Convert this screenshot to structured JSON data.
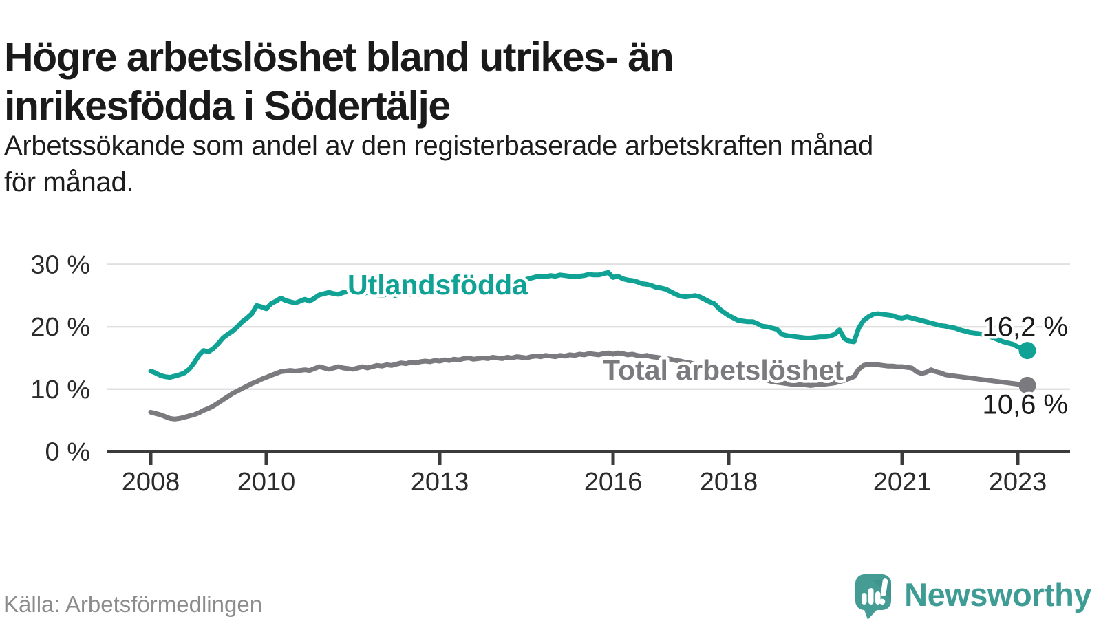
{
  "header": {
    "title_lines": [
      "Högre arbetslöshet bland utrikes- än",
      "inrikesfödda i Södertälje"
    ],
    "subtitle_lines": [
      "Arbetssökande som andel av den registerbaserade arbetskraften månad",
      "för månad."
    ]
  },
  "footer": {
    "source": "Källa: Arbetsförmedlingen",
    "brand": "Newsworthy"
  },
  "colors": {
    "foreign_born_line": "#0fa295",
    "total_line": "#7a7a7f",
    "grid": "#e0e0e0",
    "axis": "#3b3b3b",
    "title_text": "#1a1a1a",
    "tick_text": "#2b2b2b",
    "muted_text": "#8c8c8c",
    "brand_teal": "#449c95"
  },
  "chart_data": {
    "type": "line",
    "unit": "%",
    "frequency": "monthly",
    "x_start": "2008-01",
    "x_end": "2023-03",
    "grid": true,
    "legend": "inline-labels",
    "y_axis": {
      "min": 0,
      "max": 31,
      "ticks": [
        {
          "value": 30,
          "label": "30 %"
        },
        {
          "value": 20,
          "label": "20 %"
        },
        {
          "value": 10,
          "label": "10 %"
        },
        {
          "value": 0,
          "label": "0 %"
        }
      ]
    },
    "x_axis": {
      "ticks": [
        {
          "year": 2008,
          "label": "2008"
        },
        {
          "year": 2010,
          "label": "2010"
        },
        {
          "year": 2013,
          "label": "2013"
        },
        {
          "year": 2016,
          "label": "2016"
        },
        {
          "year": 2018,
          "label": "2018"
        },
        {
          "year": 2021,
          "label": "2021"
        },
        {
          "year": 2023,
          "label": "2023"
        }
      ]
    },
    "series": [
      {
        "name": "Utlandsfödda",
        "color": "#0fa295",
        "end_label": "16,2 %",
        "end_value": 16.2,
        "values": [
          12.9,
          12.6,
          12.2,
          12.0,
          11.9,
          12.1,
          12.3,
          12.6,
          13.2,
          14.2,
          15.4,
          16.2,
          16.0,
          16.5,
          17.3,
          18.2,
          18.8,
          19.3,
          20.0,
          20.8,
          21.4,
          22.1,
          23.4,
          23.2,
          22.9,
          23.7,
          24.1,
          24.6,
          24.2,
          24.0,
          23.8,
          24.1,
          24.4,
          24.1,
          24.6,
          25.1,
          25.3,
          25.5,
          25.3,
          25.2,
          25.5,
          25.6,
          25.4,
          25.2,
          25.3,
          25.5,
          25.3,
          25.1,
          25.0,
          25.2,
          25.1,
          25.0,
          25.2,
          25.3,
          25.2,
          25.1,
          25.3,
          25.4,
          25.3,
          25.5,
          25.5,
          25.4,
          25.6,
          25.5,
          25.7,
          25.6,
          25.8,
          25.7,
          25.9,
          26.0,
          25.9,
          26.1,
          26.2,
          26.4,
          26.7,
          26.9,
          27.2,
          27.4,
          27.6,
          27.8,
          28.0,
          28.1,
          28.0,
          28.2,
          28.1,
          28.3,
          28.2,
          28.1,
          28.0,
          28.1,
          28.2,
          28.4,
          28.3,
          28.3,
          28.5,
          28.7,
          27.9,
          28.1,
          27.7,
          27.5,
          27.4,
          27.2,
          26.9,
          26.8,
          26.6,
          26.3,
          26.2,
          26.0,
          25.6,
          25.2,
          24.9,
          24.8,
          24.9,
          25.0,
          24.8,
          24.4,
          24.0,
          23.7,
          22.9,
          22.3,
          21.8,
          21.4,
          21.0,
          20.9,
          20.8,
          20.8,
          20.5,
          20.1,
          20.0,
          19.8,
          19.6,
          18.8,
          18.6,
          18.5,
          18.4,
          18.3,
          18.2,
          18.2,
          18.3,
          18.4,
          18.4,
          18.5,
          18.8,
          19.5,
          18.1,
          17.7,
          17.6,
          19.8,
          21.0,
          21.6,
          22.0,
          22.1,
          22.0,
          21.9,
          21.8,
          21.5,
          21.4,
          21.6,
          21.4,
          21.2,
          21.0,
          20.8,
          20.6,
          20.4,
          20.2,
          20.1,
          19.9,
          19.8,
          19.5,
          19.3,
          19.1,
          19.0,
          18.9,
          18.7,
          18.5,
          18.2,
          17.9,
          17.6,
          17.4,
          17.2,
          16.8,
          16.4,
          16.2
        ]
      },
      {
        "name": "Total arbetslöshet",
        "color": "#7a7a7f",
        "end_label": "10,6 %",
        "end_value": 10.6,
        "values": [
          6.3,
          6.1,
          5.9,
          5.6,
          5.3,
          5.2,
          5.3,
          5.5,
          5.7,
          5.9,
          6.2,
          6.6,
          6.9,
          7.3,
          7.8,
          8.3,
          8.8,
          9.3,
          9.7,
          10.1,
          10.5,
          10.9,
          11.2,
          11.6,
          11.9,
          12.2,
          12.5,
          12.8,
          12.9,
          13.0,
          12.9,
          13.0,
          13.1,
          13.0,
          13.3,
          13.6,
          13.4,
          13.2,
          13.4,
          13.6,
          13.4,
          13.3,
          13.2,
          13.4,
          13.6,
          13.4,
          13.6,
          13.8,
          13.7,
          13.9,
          13.8,
          14.0,
          14.2,
          14.1,
          14.3,
          14.2,
          14.4,
          14.5,
          14.4,
          14.6,
          14.5,
          14.7,
          14.6,
          14.8,
          14.7,
          14.9,
          15.0,
          14.8,
          14.9,
          15.0,
          14.9,
          15.1,
          15.0,
          14.9,
          15.1,
          15.0,
          15.2,
          15.1,
          15.0,
          15.2,
          15.3,
          15.2,
          15.4,
          15.3,
          15.2,
          15.4,
          15.3,
          15.5,
          15.4,
          15.6,
          15.5,
          15.7,
          15.6,
          15.5,
          15.7,
          15.8,
          15.6,
          15.8,
          15.7,
          15.5,
          15.6,
          15.4,
          15.3,
          15.4,
          15.2,
          15.1,
          15.0,
          14.9,
          14.8,
          14.6,
          14.5,
          14.3,
          14.2,
          14.0,
          13.9,
          13.7,
          13.5,
          13.3,
          13.1,
          12.9,
          12.7,
          12.5,
          12.3,
          12.1,
          12.0,
          11.8,
          11.7,
          11.5,
          11.4,
          11.2,
          11.1,
          11.0,
          10.9,
          10.8,
          10.8,
          10.7,
          10.7,
          10.6,
          10.7,
          10.7,
          10.8,
          10.9,
          11.0,
          11.2,
          11.4,
          11.7,
          12.0,
          13.2,
          13.8,
          14.0,
          14.0,
          13.9,
          13.8,
          13.7,
          13.7,
          13.6,
          13.6,
          13.5,
          13.4,
          12.8,
          12.5,
          12.7,
          13.1,
          12.8,
          12.6,
          12.3,
          12.2,
          12.1,
          12.0,
          11.9,
          11.8,
          11.7,
          11.6,
          11.5,
          11.4,
          11.3,
          11.2,
          11.1,
          11.0,
          10.9,
          10.8,
          10.7,
          10.6
        ]
      }
    ]
  }
}
